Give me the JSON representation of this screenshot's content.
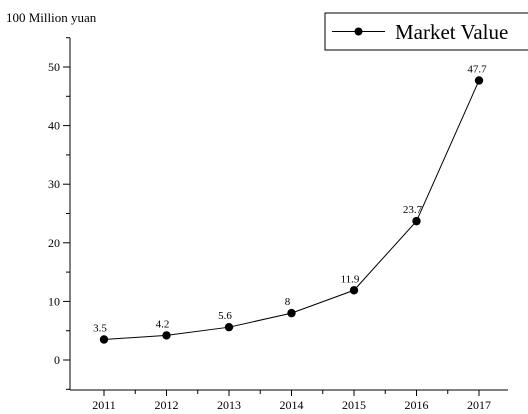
{
  "chart_data": {
    "type": "line",
    "ylabel": "100 Million yuan",
    "categories": [
      "2011",
      "2012",
      "2013",
      "2014",
      "2015",
      "2016",
      "2017"
    ],
    "series": [
      {
        "name": "Market Value",
        "values": [
          3.5,
          4.2,
          5.6,
          8,
          11.9,
          23.7,
          47.7
        ],
        "data_labels": [
          "3.5",
          "4.2",
          "5.6",
          "8",
          "11.9",
          "23.7",
          "47.7"
        ],
        "color": "#000000"
      }
    ],
    "ylim": [
      -5,
      55
    ],
    "yticks": [
      0,
      10,
      20,
      30,
      40,
      50
    ],
    "grid": false,
    "legend_position": "top-right"
  }
}
